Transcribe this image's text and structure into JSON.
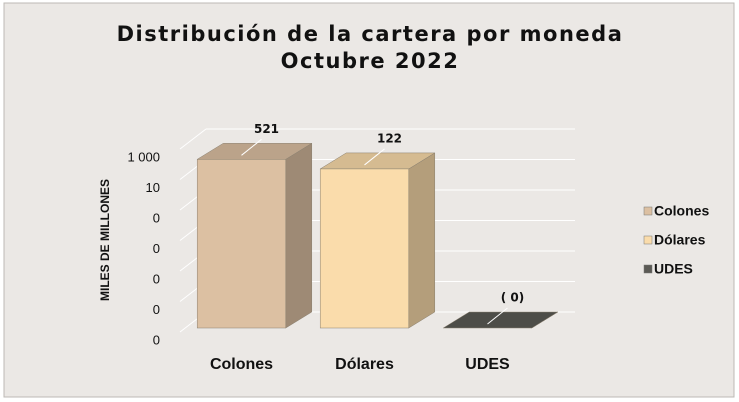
{
  "chart_data": {
    "type": "bar3d",
    "title": "Distribución de la cartera por moneda",
    "subtitle": "Octubre 2022",
    "y_label": "MILES DE MILLONES",
    "categories": [
      "Colones",
      "Dólares",
      "UDES"
    ],
    "values": [
      521,
      122,
      -0.2
    ],
    "value_labels": [
      "521",
      "122",
      "( 0)"
    ],
    "colors": [
      "#dcc0a2",
      "#fadcab",
      "#5b5a55"
    ],
    "log_scale": true,
    "ylim": [
      1e-09,
      1000
    ],
    "yticks": [
      {
        "value": 1e-09,
        "label": "0"
      },
      {
        "value": 1e-07,
        "label": "0"
      },
      {
        "value": 1e-05,
        "label": "0"
      },
      {
        "value": 0.001,
        "label": "0"
      },
      {
        "value": 0.1,
        "label": "0"
      },
      10,
      {
        "value": 1000,
        "label": "1 000"
      }
    ],
    "grid": true,
    "legend": "right"
  }
}
